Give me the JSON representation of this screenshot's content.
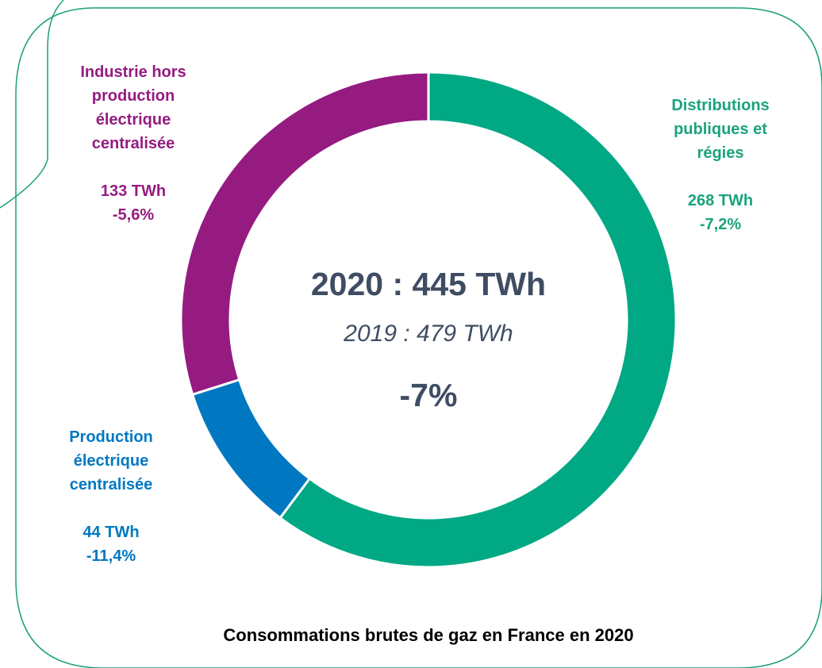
{
  "chart_data": {
    "type": "pie",
    "title": "Consommations brutes de gaz en France en 2020",
    "categories": [
      "Distributions publiques et régies",
      "Production électrique centralisée",
      "Industrie hors production électrique centralisée"
    ],
    "values": [
      268,
      44,
      133
    ],
    "value_labels": [
      "268 TWh",
      "44 TWh",
      "133 TWh"
    ],
    "change_labels": [
      "-7,2%",
      "-11,4%",
      "-5,6%"
    ],
    "colors": [
      "#00a884",
      "#0078c1",
      "#951b81"
    ],
    "annotations": [
      "2020 : 445 TWh",
      "2019 : 479 TWh",
      "-7%"
    ]
  }
}
